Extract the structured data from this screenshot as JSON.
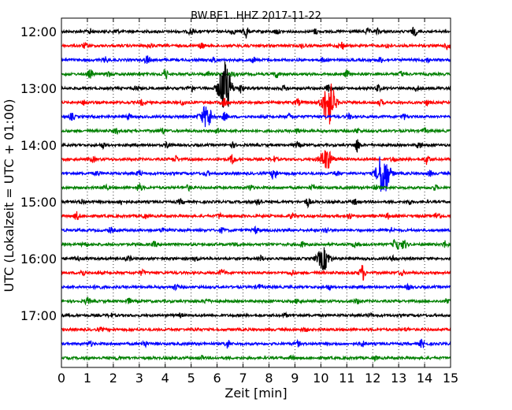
{
  "chart_data": {
    "type": "line",
    "title": "BW.BE1..HHZ 2017-11-22",
    "xlabel": "Zeit  [min]",
    "ylabel": "UTC (Lokalzeit = UTC + 01:00)",
    "xlim": [
      0,
      15
    ],
    "xticks": [
      "0",
      "1",
      "2",
      "3",
      "4",
      "5",
      "6",
      "7",
      "8",
      "9",
      "10",
      "11",
      "12",
      "13",
      "14",
      "15"
    ],
    "yticks": [
      "12:00",
      "13:00",
      "14:00",
      "15:00",
      "16:00",
      "17:00"
    ],
    "grid": "vertical-dotted",
    "trace_colors": [
      "#000000",
      "#ff0000",
      "#0000ff",
      "#008000"
    ],
    "traces": [
      {
        "time": "12:00",
        "color": "#000000",
        "events": [
          [
            7.1,
            9
          ],
          [
            13.6,
            5
          ],
          [
            1.1,
            3
          ],
          [
            2.1,
            3
          ],
          [
            5.0,
            4
          ],
          [
            6.6,
            3
          ],
          [
            8.3,
            3
          ],
          [
            9.8,
            3
          ],
          [
            11.8,
            3
          ],
          [
            12.2,
            3
          ]
        ]
      },
      {
        "time": "12:15",
        "color": "#ff0000",
        "events": [
          [
            10.8,
            5
          ],
          [
            14.9,
            5
          ],
          [
            0.9,
            3
          ],
          [
            3.4,
            3
          ],
          [
            5.4,
            3
          ],
          [
            7.1,
            3
          ],
          [
            9.3,
            3
          ],
          [
            12.6,
            3
          ]
        ]
      },
      {
        "time": "12:30",
        "color": "#0000ff",
        "events": [
          [
            3.3,
            5
          ],
          [
            1.7,
            3
          ],
          [
            5.9,
            3
          ],
          [
            7.4,
            3
          ],
          [
            10.1,
            3
          ],
          [
            12.3,
            3
          ],
          [
            14.1,
            3
          ]
        ]
      },
      {
        "time": "12:45",
        "color": "#008000",
        "events": [
          [
            1.1,
            5
          ],
          [
            4.0,
            6
          ],
          [
            8.3,
            4
          ],
          [
            11.0,
            4
          ],
          [
            1.8,
            3
          ],
          [
            5.7,
            3
          ],
          [
            6.6,
            3
          ],
          [
            13.1,
            3
          ]
        ]
      },
      {
        "time": "13:00",
        "color": "#000000",
        "events": [
          [
            6.3,
            34
          ],
          [
            5.0,
            5
          ],
          [
            6.9,
            6
          ],
          [
            10.3,
            4
          ],
          [
            12.2,
            4
          ],
          [
            2.9,
            3
          ],
          [
            8.6,
            3
          ],
          [
            13.7,
            3
          ]
        ]
      },
      {
        "time": "13:15",
        "color": "#ff0000",
        "events": [
          [
            6.3,
            6
          ],
          [
            10.3,
            30
          ],
          [
            9.1,
            4
          ],
          [
            0.9,
            3
          ],
          [
            3.1,
            3
          ],
          [
            4.7,
            3
          ],
          [
            12.3,
            3
          ],
          [
            14.1,
            3
          ]
        ]
      },
      {
        "time": "13:30",
        "color": "#0000ff",
        "events": [
          [
            5.6,
            14
          ],
          [
            0.4,
            4
          ],
          [
            6.3,
            5
          ],
          [
            2.6,
            3
          ],
          [
            8.8,
            3
          ],
          [
            11.1,
            3
          ],
          [
            13.2,
            3
          ]
        ]
      },
      {
        "time": "13:45",
        "color": "#008000",
        "events": [
          [
            2.1,
            3
          ],
          [
            3.9,
            3
          ],
          [
            6.0,
            3
          ],
          [
            9.1,
            3
          ],
          [
            11.4,
            3
          ],
          [
            14.0,
            3
          ]
        ]
      },
      {
        "time": "14:00",
        "color": "#000000",
        "events": [
          [
            11.4,
            8
          ],
          [
            4.1,
            4
          ],
          [
            9.1,
            3
          ],
          [
            1.6,
            3
          ],
          [
            6.6,
            3
          ],
          [
            13.8,
            4
          ]
        ]
      },
      {
        "time": "14:15",
        "color": "#ff0000",
        "events": [
          [
            10.2,
            13
          ],
          [
            6.6,
            6
          ],
          [
            14.1,
            6
          ],
          [
            4.4,
            4
          ],
          [
            1.2,
            3
          ],
          [
            8.2,
            3
          ],
          [
            12.8,
            3
          ]
        ]
      },
      {
        "time": "14:30",
        "color": "#0000ff",
        "events": [
          [
            12.4,
            30
          ],
          [
            8.2,
            9
          ],
          [
            3.0,
            3
          ],
          [
            5.6,
            3
          ],
          [
            10.6,
            3
          ],
          [
            1.4,
            3
          ],
          [
            14.2,
            3
          ]
        ]
      },
      {
        "time": "14:45",
        "color": "#008000",
        "events": [
          [
            3.0,
            5
          ],
          [
            1.7,
            3
          ],
          [
            4.9,
            3
          ],
          [
            7.3,
            3
          ],
          [
            9.7,
            3
          ],
          [
            12.1,
            3
          ],
          [
            14.4,
            3
          ]
        ]
      },
      {
        "time": "15:00",
        "color": "#000000",
        "events": [
          [
            7.6,
            5
          ],
          [
            9.5,
            5
          ],
          [
            2.3,
            3
          ],
          [
            4.6,
            3
          ],
          [
            11.3,
            3
          ],
          [
            13.4,
            3
          ],
          [
            0.8,
            3
          ]
        ]
      },
      {
        "time": "15:15",
        "color": "#ff0000",
        "events": [
          [
            0.6,
            5
          ],
          [
            14.5,
            5
          ],
          [
            3.2,
            3
          ],
          [
            6.1,
            3
          ],
          [
            8.9,
            3
          ],
          [
            11.1,
            3
          ],
          [
            12.6,
            3
          ]
        ]
      },
      {
        "time": "15:30",
        "color": "#0000ff",
        "events": [
          [
            7.5,
            4
          ],
          [
            6.2,
            3
          ],
          [
            1.9,
            3
          ],
          [
            3.9,
            3
          ],
          [
            10.2,
            3
          ],
          [
            12.7,
            3
          ]
        ]
      },
      {
        "time": "15:45",
        "color": "#008000",
        "events": [
          [
            12.9,
            10
          ],
          [
            13.2,
            6
          ],
          [
            14.8,
            4
          ],
          [
            0.9,
            3
          ],
          [
            3.6,
            3
          ],
          [
            6.7,
            3
          ],
          [
            9.3,
            3
          ],
          [
            11.3,
            3
          ]
        ]
      },
      {
        "time": "16:00",
        "color": "#000000",
        "events": [
          [
            10.1,
            14
          ],
          [
            2.6,
            3
          ],
          [
            5.2,
            3
          ],
          [
            7.7,
            3
          ],
          [
            12.8,
            3
          ],
          [
            0.6,
            3
          ]
        ]
      },
      {
        "time": "16:15",
        "color": "#ff0000",
        "events": [
          [
            11.6,
            10
          ],
          [
            0.8,
            4
          ],
          [
            6.2,
            4
          ],
          [
            3.1,
            3
          ],
          [
            8.9,
            3
          ],
          [
            13.1,
            3
          ]
        ]
      },
      {
        "time": "16:30",
        "color": "#0000ff",
        "events": [
          [
            1.4,
            3
          ],
          [
            4.4,
            3
          ],
          [
            7.6,
            3
          ],
          [
            10.3,
            3
          ],
          [
            13.4,
            3
          ]
        ]
      },
      {
        "time": "16:45",
        "color": "#008000",
        "events": [
          [
            1.0,
            4
          ],
          [
            14.9,
            5
          ],
          [
            2.6,
            3
          ],
          [
            5.6,
            3
          ],
          [
            9.1,
            3
          ],
          [
            11.4,
            3
          ]
        ]
      },
      {
        "time": "17:00",
        "color": "#000000",
        "events": [
          [
            1.9,
            2
          ],
          [
            4.6,
            2
          ],
          [
            8.6,
            2
          ],
          [
            11.9,
            2
          ]
        ]
      },
      {
        "time": "17:15",
        "color": "#ff0000",
        "events": [
          [
            1.5,
            2
          ],
          [
            5.2,
            2
          ],
          [
            9.4,
            2
          ],
          [
            13.3,
            2
          ]
        ]
      },
      {
        "time": "17:30",
        "color": "#0000ff",
        "events": [
          [
            3.2,
            4
          ],
          [
            6.4,
            5
          ],
          [
            13.9,
            5
          ],
          [
            1.1,
            3
          ],
          [
            9.1,
            3
          ],
          [
            11.6,
            3
          ]
        ]
      },
      {
        "time": "17:45",
        "color": "#008000",
        "events": [
          [
            2.2,
            2
          ],
          [
            5.4,
            2
          ],
          [
            8.9,
            2
          ],
          [
            12.1,
            2
          ]
        ]
      }
    ]
  }
}
